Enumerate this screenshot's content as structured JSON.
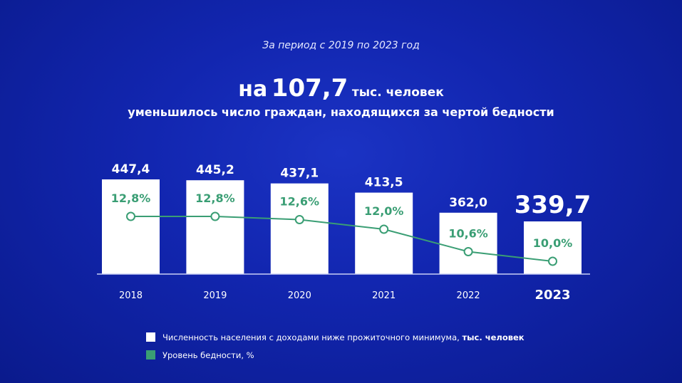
{
  "subtitle": "За период с 2019 по 2023 год",
  "headline": {
    "prefix": "на",
    "number": "107,7",
    "unit": "тыс. человек",
    "line2": "уменьшилось число граждан, находящихся за чертой бедности"
  },
  "chart_data": {
    "type": "bar",
    "categories": [
      "2018",
      "2019",
      "2020",
      "2021",
      "2022",
      "2023"
    ],
    "series": [
      {
        "name": "Численность населения с доходами ниже прожиточного минимума, тыс. человек",
        "type": "bar",
        "values": [
          447.4,
          445.2,
          437.1,
          413.5,
          362.0,
          339.7
        ],
        "labels": [
          "447,4",
          "445,2",
          "437,1",
          "413,5",
          "362,0",
          "339,7"
        ],
        "color": "#ffffff"
      },
      {
        "name": "Уровень бедности, %",
        "type": "line",
        "values": [
          12.8,
          12.8,
          12.6,
          12.0,
          10.6,
          10.0
        ],
        "labels": [
          "12,8%",
          "12,8%",
          "12,6%",
          "12,0%",
          "10,6%",
          "10,0%"
        ],
        "color": "#3a9e74"
      }
    ],
    "highlight_category": "2023"
  },
  "legend": {
    "bar_text": "Численность населения с доходами ниже прожиточного минимума, ",
    "bar_unit": "тыс. человек",
    "line_text": "Уровень бедности, %"
  }
}
